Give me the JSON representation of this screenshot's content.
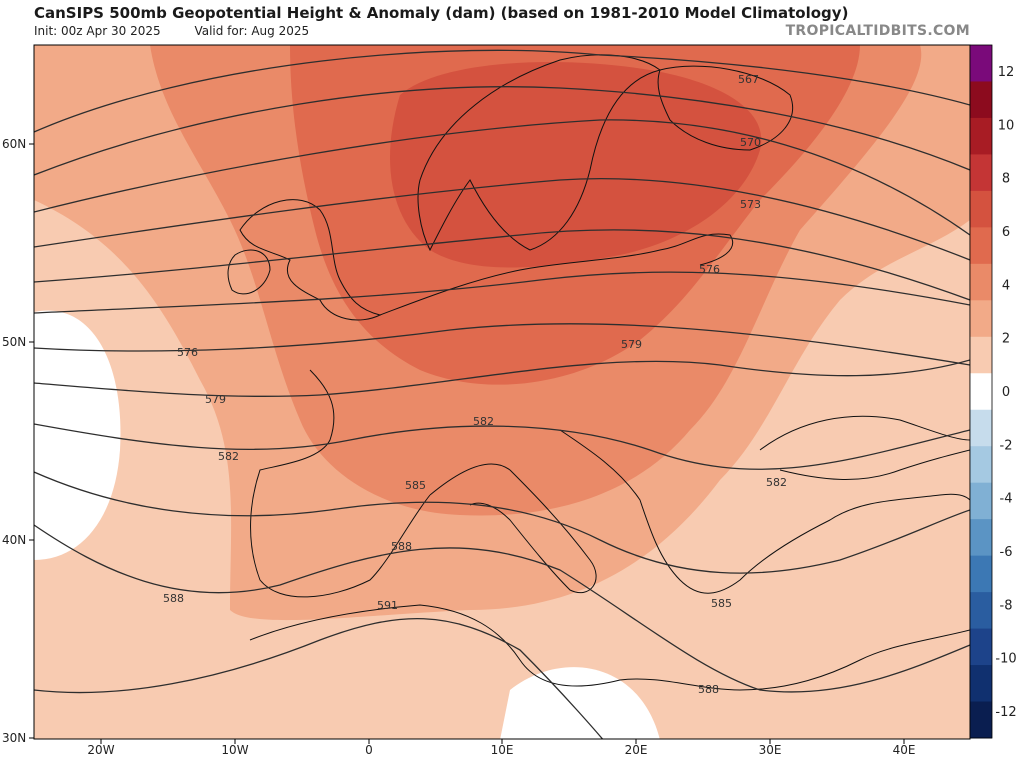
{
  "header": {
    "title": "CanSIPS 500mb Geopotential Height & Anomaly (dam) (based on 1981-2010 Model Climatology)",
    "init": "Init: 00z Apr 30 2025",
    "valid": "Valid for: Aug 2025",
    "site": "TROPICALTIDBITS.COM"
  },
  "axes": {
    "lat_labels": [
      "60N",
      "50N",
      "40N",
      "30N"
    ],
    "lon_labels": [
      "20W",
      "10W",
      "0",
      "10E",
      "20E",
      "30E",
      "40E"
    ]
  },
  "contours": {
    "labels": [
      "567",
      "570",
      "573",
      "576",
      "576",
      "579",
      "579",
      "582",
      "582",
      "582",
      "585",
      "585",
      "588",
      "588",
      "588",
      "591"
    ]
  },
  "colorbar": {
    "labels": [
      "12",
      "10",
      "8",
      "6",
      "4",
      "2",
      "0",
      "-2",
      "-4",
      "-6",
      "-8",
      "-10",
      "-12"
    ],
    "colors": [
      "#7a0a7a",
      "#8c0b1e",
      "#a81c24",
      "#c43535",
      "#d4523f",
      "#e06a4e",
      "#ea8a68",
      "#f2aa88",
      "#f8cbb1",
      "#ffffff",
      "#c6dcec",
      "#a5c9e2",
      "#80b0d4",
      "#5b94c4",
      "#3c78b4",
      "#2a5da0",
      "#1d438a",
      "#10306f",
      "#0a1e50"
    ]
  }
}
